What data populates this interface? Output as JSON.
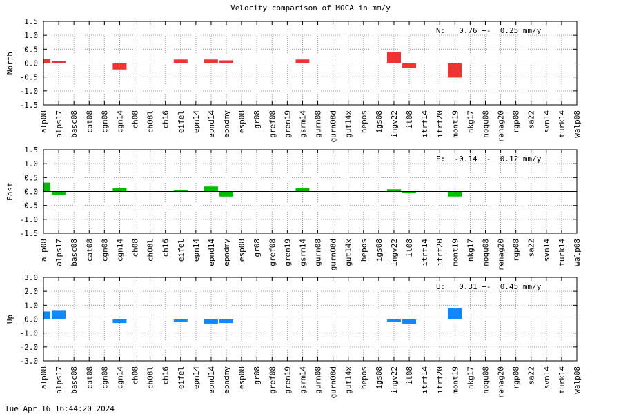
{
  "page_title": "Velocity comparison of MOCA in mm/y",
  "timestamp": "Tue Apr 16 16:44:20 2024",
  "chart_data": [
    {
      "type": "bar",
      "title": "",
      "ylabel": "North",
      "ylim": [
        -1.5,
        1.5
      ],
      "yticks": [
        1.5,
        1.0,
        0.5,
        0.0,
        -0.5,
        -1.0,
        -1.5
      ],
      "tick_labels": [
        "1.5",
        "1.0",
        "0.5",
        "0.0",
        "-0.5",
        "-1.0",
        "-1.5"
      ],
      "grid": true,
      "color": "#ee3333",
      "annotation": "N:   0.76 +-  0.25 mm/y",
      "categories": [
        "alp08",
        "alps17",
        "basc08",
        "cat08",
        "cgn08",
        "cgn14",
        "ch08",
        "ch08l",
        "ch16",
        "eifel",
        "epn14",
        "epnd14",
        "epndmy",
        "esp08",
        "gr08",
        "gref08",
        "gren19",
        "gsrm14",
        "gurn08",
        "gurn08d",
        "gut14x",
        "hepos",
        "igs08",
        "ingv22",
        "it08",
        "itrf14",
        "itrf20",
        "mont19",
        "nkg17",
        "noqu08",
        "renag20",
        "rgp08",
        "sa22",
        "svn14",
        "turk14",
        "walp08"
      ],
      "values": [
        0.15,
        0.08,
        0,
        0,
        0,
        -0.23,
        0,
        0,
        0,
        0.13,
        0,
        0.13,
        0.1,
        0,
        0,
        0,
        0,
        0.13,
        0,
        0,
        0,
        0,
        0,
        0.4,
        -0.18,
        0,
        0,
        -0.52,
        0,
        0,
        0,
        0,
        0,
        0,
        0,
        0
      ]
    },
    {
      "type": "bar",
      "title": "",
      "ylabel": "East",
      "ylim": [
        -1.5,
        1.5
      ],
      "yticks": [
        1.5,
        1.0,
        0.5,
        0.0,
        -0.5,
        -1.0,
        -1.5
      ],
      "tick_labels": [
        "1.5",
        "1.0",
        "0.5",
        "0.0",
        "-0.5",
        "-1.0",
        "-1.5"
      ],
      "grid": true,
      "color": "#00bb00",
      "annotation": "E:  -0.14 +-  0.12 mm/y",
      "categories": [
        "alp08",
        "alps17",
        "basc08",
        "cat08",
        "cgn08",
        "cgn14",
        "ch08",
        "ch08l",
        "ch16",
        "eifel",
        "epn14",
        "epnd14",
        "epndmy",
        "esp08",
        "gr08",
        "gref08",
        "gren19",
        "gsrm14",
        "gurn08",
        "gurn08d",
        "gut14x",
        "hepos",
        "igs08",
        "ingv22",
        "it08",
        "itrf14",
        "itrf20",
        "mont19",
        "nkg17",
        "noqu08",
        "renag20",
        "rgp08",
        "sa22",
        "svn14",
        "turk14",
        "walp08"
      ],
      "values": [
        0.32,
        -0.11,
        0,
        0,
        0,
        0.12,
        0,
        0,
        0,
        0.05,
        0,
        0.18,
        -0.18,
        0,
        0,
        0,
        0,
        0.12,
        0,
        0,
        0,
        0,
        0,
        0.08,
        -0.05,
        0,
        0,
        -0.18,
        0,
        0,
        0,
        0,
        0,
        0,
        0,
        0
      ]
    },
    {
      "type": "bar",
      "title": "",
      "ylabel": "Up",
      "ylim": [
        -3.0,
        3.0
      ],
      "yticks": [
        3.0,
        2.0,
        1.0,
        0.0,
        -1.0,
        -2.0,
        -3.0
      ],
      "tick_labels": [
        "3.0",
        "2.0",
        "1.0",
        "0.0",
        "-1.0",
        "-2.0",
        "-3.0"
      ],
      "grid": true,
      "color": "#1188ff",
      "annotation": "U:   0.31 +-  0.45 mm/y",
      "categories": [
        "alp08",
        "alps17",
        "basc08",
        "cat08",
        "cgn08",
        "cgn14",
        "ch08",
        "ch08l",
        "ch16",
        "eifel",
        "epn14",
        "epnd14",
        "epndmy",
        "esp08",
        "gr08",
        "gref08",
        "gren19",
        "gsrm14",
        "gurn08",
        "gurn08d",
        "gut14x",
        "hepos",
        "igs08",
        "ingv22",
        "it08",
        "itrf14",
        "itrf20",
        "mont19",
        "nkg17",
        "noqu08",
        "renag20",
        "rgp08",
        "sa22",
        "svn14",
        "turk14",
        "walp08"
      ],
      "values": [
        0.55,
        0.65,
        0,
        0,
        0,
        -0.28,
        0,
        0,
        0,
        -0.22,
        0,
        -0.32,
        -0.28,
        0,
        0,
        0,
        0,
        0,
        0,
        0,
        0,
        0,
        0,
        -0.18,
        -0.33,
        0,
        0,
        0.78,
        0,
        0,
        0,
        0,
        0,
        0,
        0,
        0
      ]
    }
  ]
}
